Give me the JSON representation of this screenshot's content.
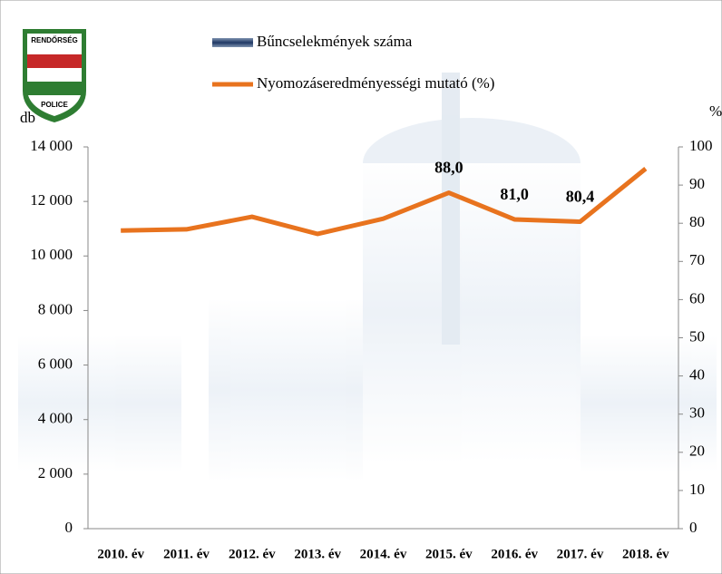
{
  "chart_data": {
    "type": "combo",
    "annotations": [
      "RENDŐRSÉG",
      "POLICE"
    ],
    "ylabel": "db",
    "y2label": "%",
    "categories": [
      "2010. év",
      "2011. év",
      "2012. év",
      "2013. év",
      "2014. év",
      "2015. év",
      "2016. év",
      "2017. év",
      "2018. év"
    ],
    "series": [
      {
        "name": "Bűncselekmények száma",
        "type": "bar",
        "color": "#1f3864",
        "axis": "y",
        "values": [
          null,
          null,
          null,
          null,
          null,
          null,
          null,
          null,
          null
        ]
      },
      {
        "name": "Nyomozáseredményességi mutató (%)",
        "type": "line",
        "color": "#e8731e",
        "axis": "y2",
        "values": [
          78.1,
          78.4,
          81.7,
          77.2,
          81.2,
          88.0,
          81.0,
          80.4,
          94.3
        ],
        "value_labels": [
          null,
          null,
          null,
          null,
          null,
          "88,0",
          "81,0",
          "80,4",
          null
        ]
      }
    ],
    "ylim": [
      0,
      14000
    ],
    "yticks": [
      0,
      {
        "value": 2000,
        "label": "2 000"
      },
      {
        "value": 4000,
        "label": "4 000"
      },
      {
        "value": 6000,
        "label": "6 000"
      },
      {
        "value": 8000,
        "label": "8 000"
      },
      {
        "value": 10000,
        "label": "10 000"
      },
      {
        "value": 12000,
        "label": "12 000"
      },
      {
        "value": 14000,
        "label": "14 000"
      }
    ],
    "y2lim": [
      0,
      100
    ],
    "y2ticks": [
      0,
      10,
      20,
      30,
      40,
      50,
      60,
      70,
      80,
      90,
      100
    ],
    "grid": false
  }
}
